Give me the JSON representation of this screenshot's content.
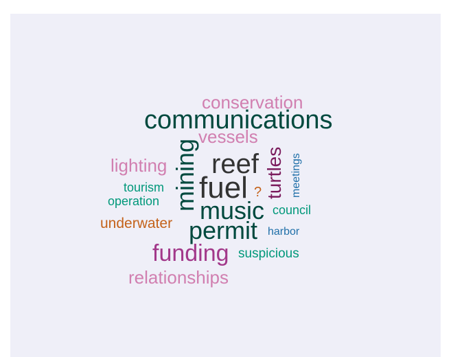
{
  "words": {
    "conservation": {
      "text": "conservation",
      "color": "#d17fb0"
    },
    "communications": {
      "text": "communications",
      "color": "#00493e"
    },
    "vessels": {
      "text": "vessels",
      "color": "#d17fb0"
    },
    "mining": {
      "text": "mining",
      "color": "#00493e"
    },
    "reef": {
      "text": "reef",
      "color": "#333333"
    },
    "turtles": {
      "text": "turtles",
      "color": "#7a1b5c"
    },
    "meetings": {
      "text": "meetings",
      "color": "#1f6fa8"
    },
    "lighting": {
      "text": "lighting",
      "color": "#d17fb0"
    },
    "tourism": {
      "text": "tourism",
      "color": "#00987a"
    },
    "fuel": {
      "text": "fuel",
      "color": "#333333"
    },
    "question": {
      "text": "?",
      "color": "#c4621a"
    },
    "operation": {
      "text": "operation",
      "color": "#00987a"
    },
    "music": {
      "text": "music",
      "color": "#00493e"
    },
    "council": {
      "text": "council",
      "color": "#00987a"
    },
    "underwater": {
      "text": "underwater",
      "color": "#c4621a"
    },
    "permit": {
      "text": "permit",
      "color": "#00493e"
    },
    "harbor": {
      "text": "harbor",
      "color": "#1f6fa8"
    },
    "funding": {
      "text": "funding",
      "color": "#a2388a"
    },
    "suspicious": {
      "text": "suspicious",
      "color": "#00987a"
    },
    "relationships": {
      "text": "relationships",
      "color": "#d17fb0"
    }
  }
}
